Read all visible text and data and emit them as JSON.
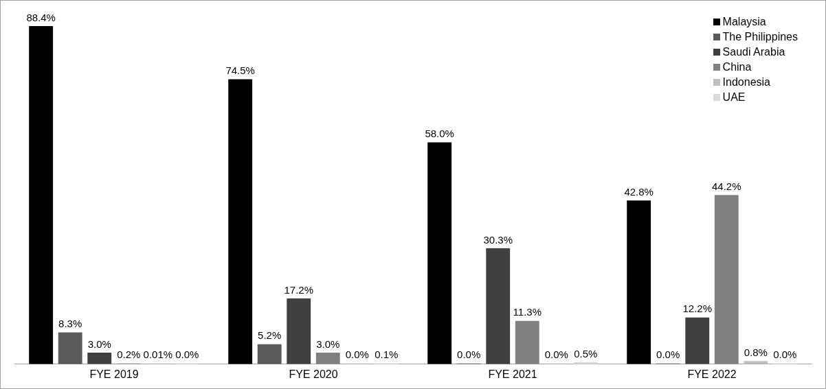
{
  "chart_data": {
    "type": "bar",
    "categories": [
      "FYE 2019",
      "FYE 2020",
      "FYE 2021",
      "FYE 2022"
    ],
    "series": [
      {
        "name": "Malaysia",
        "color": "#000000",
        "values": [
          88.4,
          74.5,
          58.0,
          42.8
        ],
        "value_labels": [
          "88.4%",
          "74.5%",
          "58.0%",
          "42.8%"
        ]
      },
      {
        "name": "The Philippines",
        "color": "#5a5a5a",
        "values": [
          8.3,
          5.2,
          0.0,
          0.0
        ],
        "value_labels": [
          "8.3%",
          "5.2%",
          "0.0%",
          "0.0%"
        ]
      },
      {
        "name": "Saudi Arabia",
        "color": "#404040",
        "values": [
          3.0,
          17.2,
          30.3,
          12.2
        ],
        "value_labels": [
          "3.0%",
          "17.2%",
          "30.3%",
          "12.2%"
        ]
      },
      {
        "name": "China",
        "color": "#808080",
        "values": [
          0.2,
          3.0,
          11.3,
          44.2
        ],
        "value_labels": [
          "0.2%",
          "3.0%",
          "11.3%",
          "44.2%"
        ]
      },
      {
        "name": "Indonesia",
        "color": "#bfbfbf",
        "values": [
          0.01,
          0.0,
          0.0,
          0.8
        ],
        "value_labels": [
          "0.01%",
          "0.0%",
          "0.0%",
          "0.8%"
        ]
      },
      {
        "name": "UAE",
        "color": "#dadada",
        "values": [
          0.0,
          0.1,
          0.5,
          0.0
        ],
        "value_labels": [
          "0.0%",
          "0.1%",
          "0.5%",
          "0.0%"
        ]
      }
    ],
    "legend": "top right",
    "grid": false
  }
}
